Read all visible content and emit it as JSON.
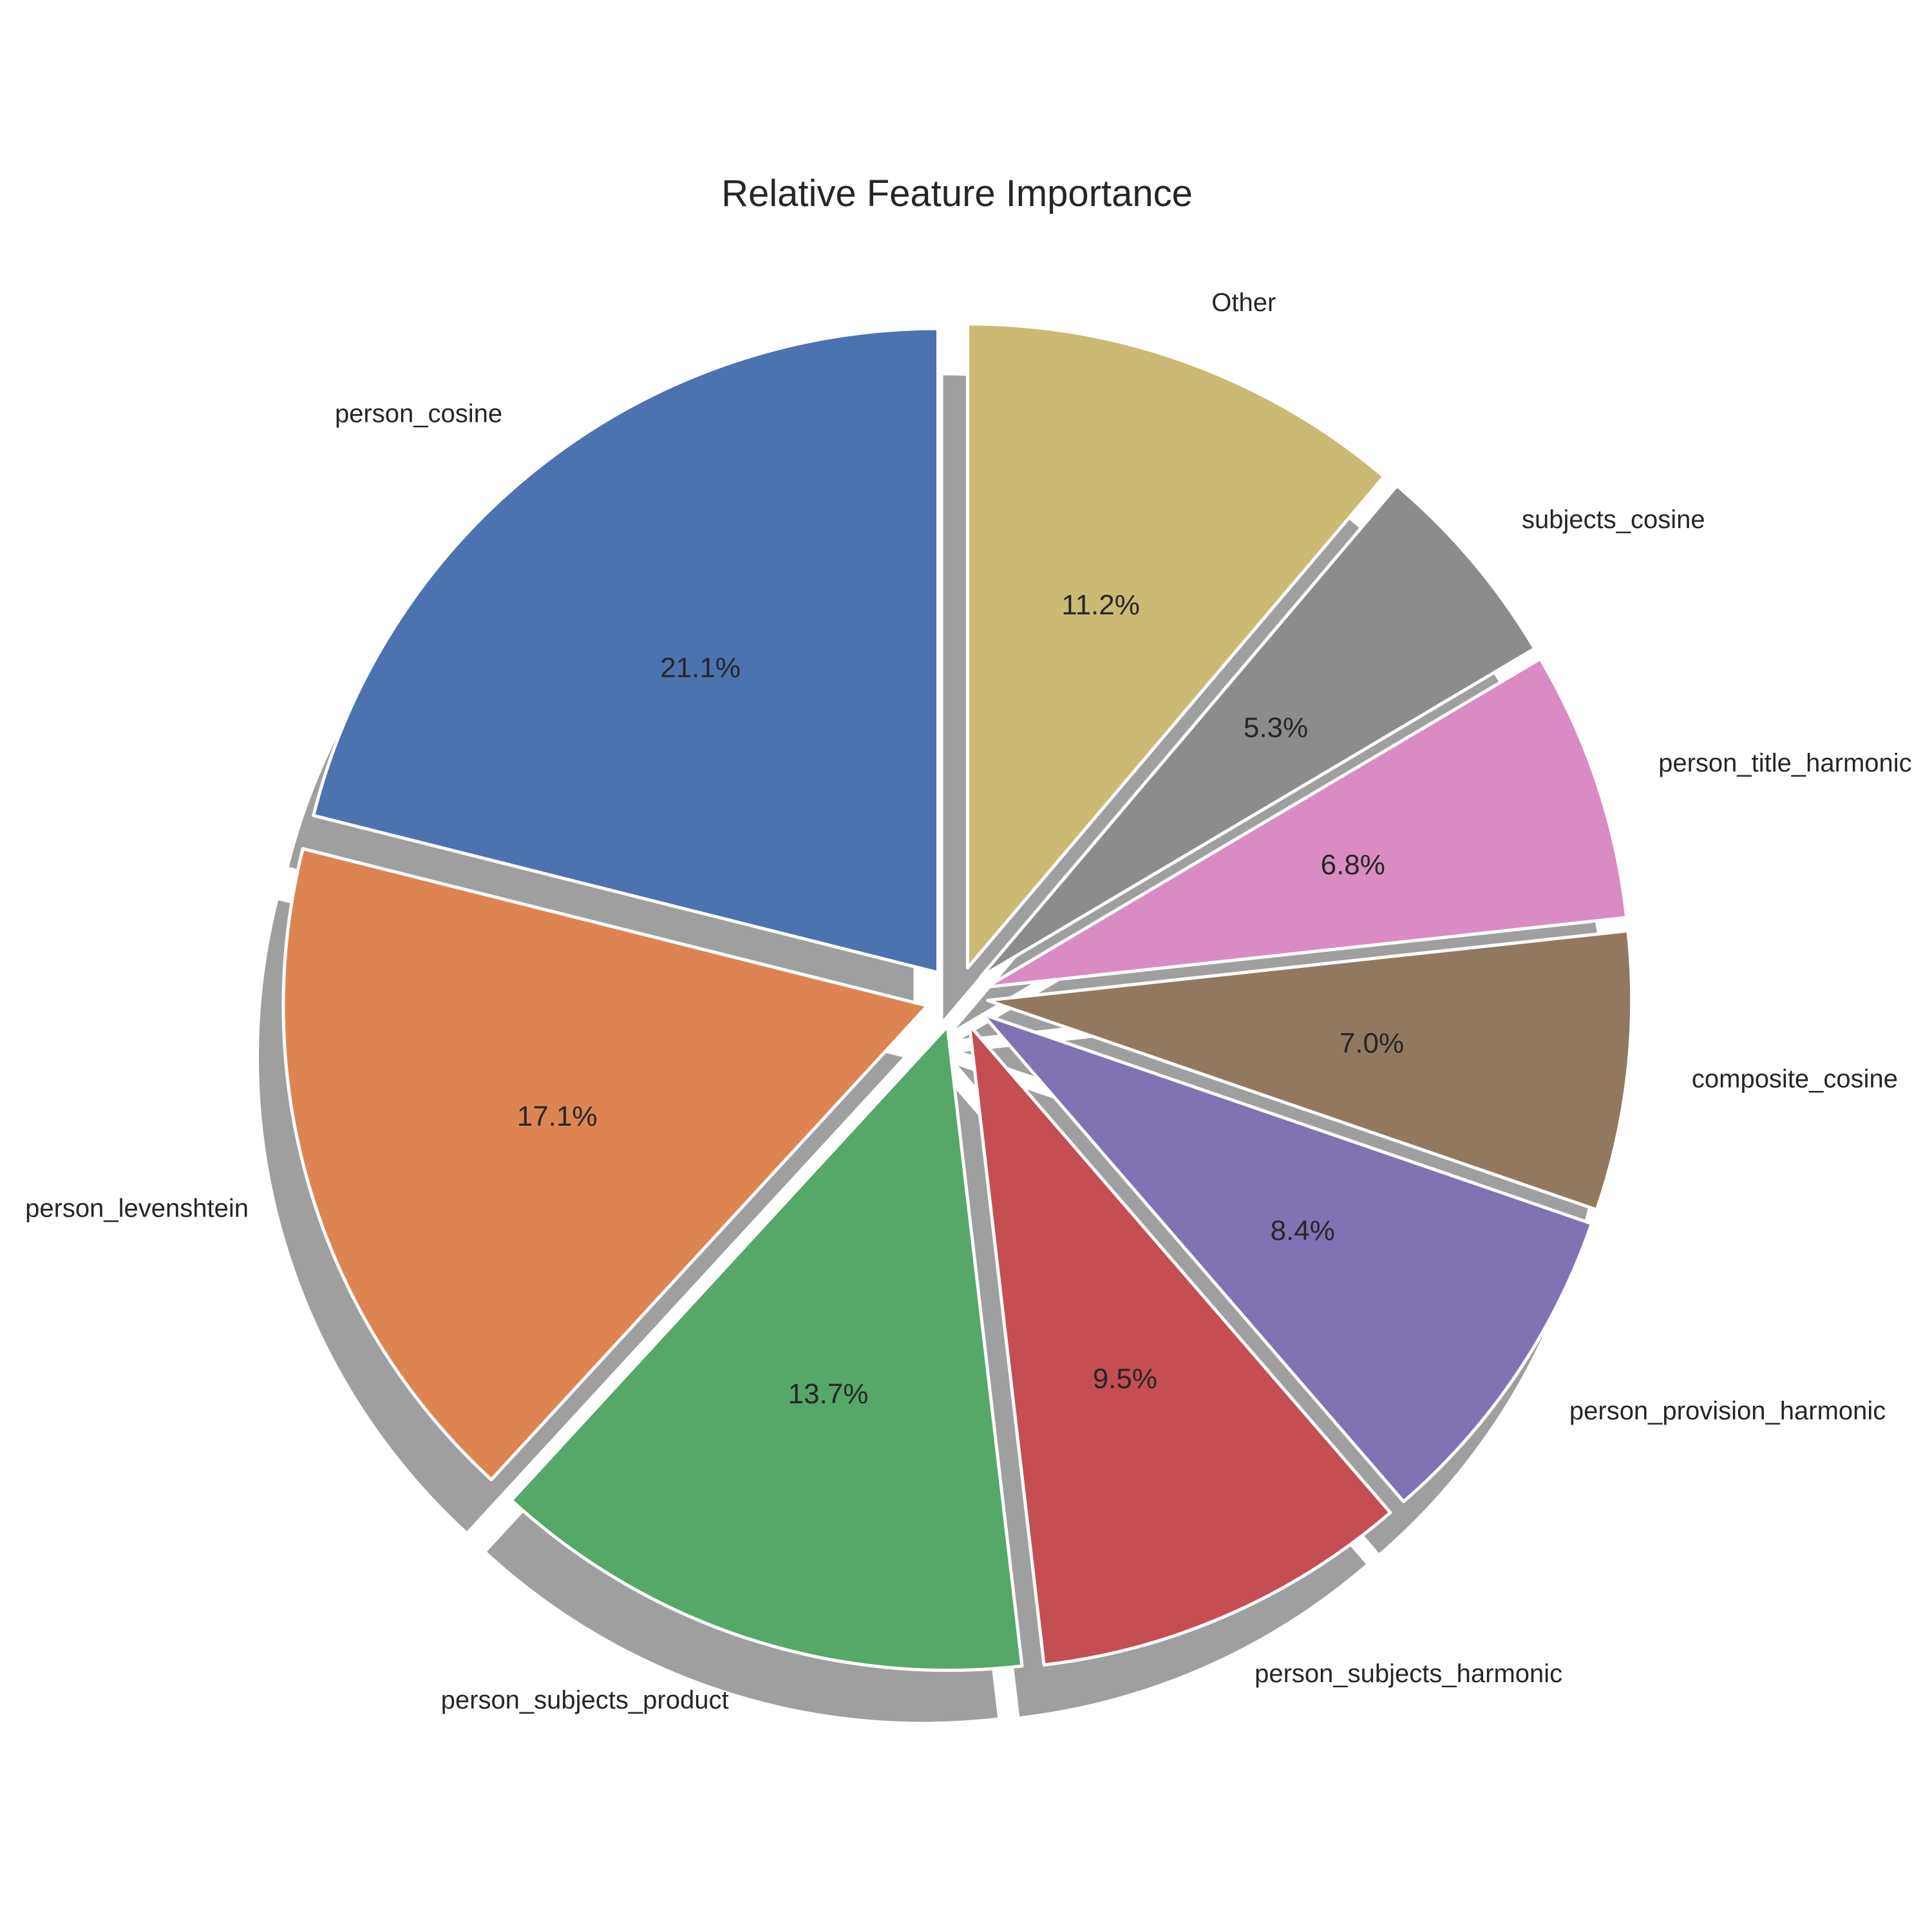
{
  "chart_data": {
    "type": "pie",
    "title": "Relative Feature Importance",
    "labels": [
      "person_cosine",
      "person_levenshtein",
      "person_subjects_product",
      "person_subjects_harmonic",
      "person_provision_harmonic",
      "composite_cosine",
      "person_title_harmonic",
      "subjects_cosine",
      "Other"
    ],
    "percent_labels": [
      "21.1%",
      "17.1%",
      "13.7%",
      "9.5%",
      "8.4%",
      "7.0%",
      "6.8%",
      "5.3%",
      "11.2%"
    ],
    "values": [
      21.1,
      17.1,
      13.7,
      9.5,
      8.4,
      7.0,
      6.8,
      5.3,
      11.2
    ],
    "colors": [
      "#4c72b0",
      "#dd8452",
      "#55a868",
      "#c44e52",
      "#8172b3",
      "#937860",
      "#da8bc3",
      "#8c8c8c",
      "#ccb974"
    ],
    "start_angle_deg": 90,
    "direction": "counterclockwise",
    "exploded": true,
    "shadow": true
  }
}
